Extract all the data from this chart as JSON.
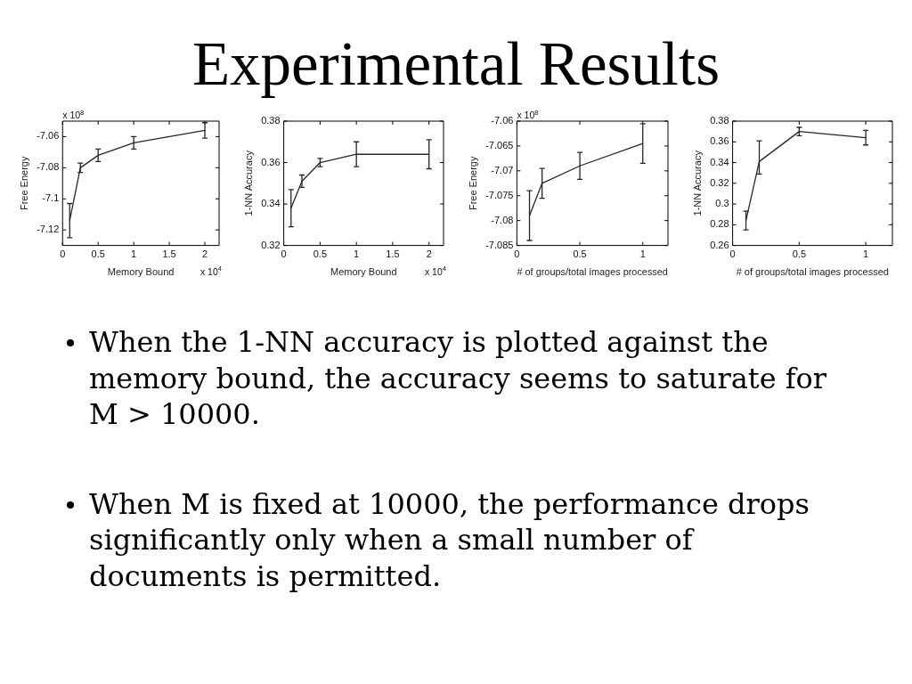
{
  "chart_data": [
    {
      "type": "other",
      "title": "Experimental Results"
    },
    {
      "type": "line",
      "xlabel": "Memory Bound",
      "ylabel": "Free Energy",
      "x": [
        0.1,
        0.25,
        0.5,
        1,
        2
      ],
      "values": [
        -7.114,
        -7.08,
        -7.072,
        -7.064,
        -7.056
      ],
      "errors": [
        0.011,
        0.003,
        0.004,
        0.004,
        0.005
      ],
      "color": "#262626",
      "xlim": [
        0,
        2.2
      ],
      "xticks": [
        0,
        0.5,
        1,
        1.5,
        2
      ],
      "ylim": [
        -7.13,
        -7.05
      ],
      "yticks": [
        -7.12,
        -7.1,
        -7.08,
        -7.06
      ],
      "annotations": [
        "x 10$^{8}$",
        "x 10$^{4}$"
      ]
    },
    {
      "type": "line",
      "xlabel": "Memory Bound",
      "ylabel": "1-NN Accuracy",
      "x": [
        0.1,
        0.25,
        0.5,
        1,
        2
      ],
      "values": [
        0.338,
        0.351,
        0.36,
        0.364,
        0.364
      ],
      "errors": [
        0.009,
        0.003,
        0.002,
        0.006,
        0.007
      ],
      "color": "#262626",
      "xlim": [
        0,
        2.2
      ],
      "xticks": [
        0,
        0.5,
        1,
        1.5,
        2
      ],
      "ylim": [
        0.32,
        0.38
      ],
      "yticks": [
        0.32,
        0.34,
        0.36,
        0.38
      ],
      "annotations": [
        "x 10$^{4}$"
      ]
    },
    {
      "type": "line",
      "xlabel": "# of groups/total images processed",
      "ylabel": "Free Energy",
      "x": [
        0.1,
        0.2,
        0.5,
        1
      ],
      "values": [
        -7.079,
        -7.0725,
        -7.069,
        -7.0645
      ],
      "errors": [
        0.005,
        0.003,
        0.0027,
        0.004
      ],
      "color": "#262626",
      "xlim": [
        0,
        1.2
      ],
      "xticks": [
        0,
        0.5,
        1
      ],
      "ylim": [
        -7.085,
        -7.06
      ],
      "yticks": [
        -7.085,
        -7.08,
        -7.075,
        -7.07,
        -7.065,
        -7.06
      ],
      "annotations": [
        "x 10$^{8}$"
      ]
    },
    {
      "type": "line",
      "xlabel": "# of groups/total images processed",
      "ylabel": "1-NN Accuracy",
      "x": [
        0.1,
        0.2,
        0.5,
        1
      ],
      "values": [
        0.284,
        0.341,
        0.37,
        0.364
      ],
      "errors": [
        [
          0.275,
          0.293
        ],
        [
          0.329,
          0.361
        ],
        0.004,
        0.007
      ],
      "color": "#262626",
      "xlim": [
        0,
        1.2
      ],
      "xticks": [
        0,
        0.5,
        1
      ],
      "ylim": [
        0.26,
        0.38
      ],
      "yticks": [
        0.26,
        0.28,
        0.3,
        0.32,
        0.34,
        0.36,
        0.38
      ]
    },
    {
      "type": "other",
      "annotations": [
        "When the 1-NN accuracy is plotted against the memory bound, the accuracy seems to saturate for M > 10000.",
        "When M is fixed at 10000, the performance drops significantly only when a small number of documents is permitted."
      ]
    }
  ]
}
